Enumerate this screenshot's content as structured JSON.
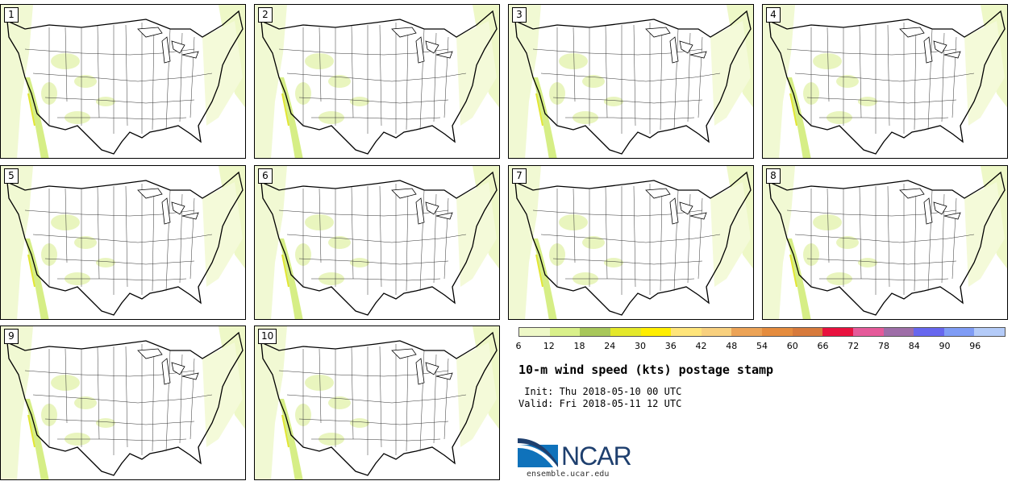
{
  "panels": [
    {
      "label": "1"
    },
    {
      "label": "2"
    },
    {
      "label": "3"
    },
    {
      "label": "4"
    },
    {
      "label": "5"
    },
    {
      "label": "6"
    },
    {
      "label": "7"
    },
    {
      "label": "8"
    },
    {
      "label": "9"
    },
    {
      "label": "10"
    }
  ],
  "colorbar": {
    "colors": [
      "#eef8c7",
      "#d9f08a",
      "#a8c75a",
      "#e4e82a",
      "#ffee00",
      "#ffe57a",
      "#f8d07e",
      "#eca356",
      "#e58c3e",
      "#d77a3c",
      "#e8123e",
      "#e55a9a",
      "#9e6ea8",
      "#6767ee",
      "#7f9cf5",
      "#b4cbf8"
    ],
    "ticks": [
      "6",
      "12",
      "18",
      "24",
      "30",
      "36",
      "42",
      "48",
      "54",
      "60",
      "66",
      "72",
      "78",
      "84",
      "90",
      "96"
    ]
  },
  "title": "10-m wind speed (kts) postage stamp",
  "init": " Init: Thu 2018-05-10 00 UTC",
  "valid": "Valid: Fri 2018-05-11 12 UTC",
  "logo": {
    "name": "NCAR",
    "url": "ensemble.ucar.edu"
  }
}
